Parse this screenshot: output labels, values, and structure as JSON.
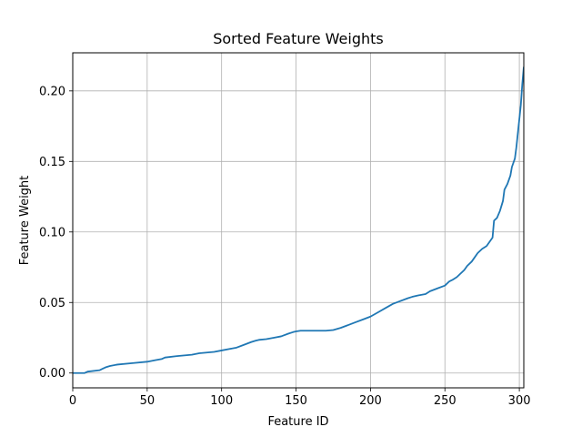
{
  "chart_data": {
    "type": "line",
    "title": "Sorted Feature Weights",
    "xlabel": "Feature ID",
    "ylabel": "Feature Weight",
    "xlim": [
      0,
      303
    ],
    "ylim": [
      -0.0105,
      0.227
    ],
    "xticks": [
      0,
      50,
      100,
      150,
      200,
      250,
      300
    ],
    "xtick_labels": [
      "0",
      "50",
      "100",
      "150",
      "200",
      "250",
      "300"
    ],
    "yticks": [
      0.0,
      0.05,
      0.1,
      0.15,
      0.2
    ],
    "ytick_labels": [
      "0.00",
      "0.05",
      "0.10",
      "0.15",
      "0.20"
    ],
    "grid": true,
    "series": [
      {
        "color": "#1f77b4",
        "x": [
          0,
          8,
          10,
          18,
          20,
          22,
          25,
          30,
          40,
          50,
          55,
          60,
          62,
          70,
          80,
          85,
          90,
          95,
          100,
          105,
          110,
          115,
          120,
          123,
          125,
          130,
          135,
          140,
          145,
          148,
          150,
          153,
          160,
          170,
          175,
          180,
          185,
          190,
          195,
          200,
          205,
          210,
          215,
          220,
          225,
          228,
          232,
          237,
          240,
          245,
          250,
          253,
          255,
          258,
          260,
          263,
          265,
          268,
          270,
          272,
          275,
          278,
          280,
          282,
          283,
          285,
          287,
          289,
          290,
          292,
          294,
          295,
          297,
          298,
          300,
          301,
          302,
          303
        ],
        "y": [
          0.0,
          0.0,
          0.001,
          0.002,
          0.003,
          0.004,
          0.005,
          0.006,
          0.007,
          0.008,
          0.009,
          0.01,
          0.011,
          0.012,
          0.013,
          0.014,
          0.0145,
          0.015,
          0.016,
          0.017,
          0.018,
          0.02,
          0.022,
          0.023,
          0.0235,
          0.024,
          0.025,
          0.026,
          0.028,
          0.029,
          0.0295,
          0.03,
          0.03,
          0.03,
          0.0305,
          0.032,
          0.034,
          0.036,
          0.038,
          0.04,
          0.043,
          0.046,
          0.049,
          0.051,
          0.053,
          0.054,
          0.055,
          0.056,
          0.058,
          0.06,
          0.062,
          0.065,
          0.066,
          0.068,
          0.07,
          0.073,
          0.076,
          0.079,
          0.082,
          0.085,
          0.088,
          0.09,
          0.093,
          0.096,
          0.108,
          0.11,
          0.115,
          0.122,
          0.13,
          0.134,
          0.14,
          0.146,
          0.152,
          0.16,
          0.18,
          0.19,
          0.205,
          0.217
        ]
      }
    ]
  }
}
